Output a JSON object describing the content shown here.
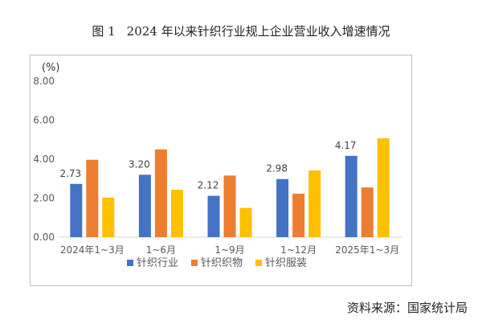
{
  "figure": {
    "number": "图 1",
    "title": "2024 年以来针织行业规上企业营业收入增速情况"
  },
  "source": "资料来源：国家统计局",
  "chart_data": {
    "type": "bar",
    "unit_label": "(%)",
    "categories": [
      "2024年1~3月",
      "1~6月",
      "1~9月",
      "1~12月",
      "2025年1~3月"
    ],
    "series": [
      {
        "name": "针织行业",
        "color": "#4472C4",
        "values": [
          2.73,
          3.2,
          2.12,
          2.98,
          4.17
        ]
      },
      {
        "name": "针织织物",
        "color": "#ED7D31",
        "values": [
          3.97,
          4.5,
          3.16,
          2.23,
          2.55
        ]
      },
      {
        "name": "针织服装",
        "color": "#FFC000",
        "values": [
          2.03,
          2.43,
          1.5,
          3.42,
          5.07
        ]
      }
    ],
    "data_labels": [
      {
        "series": 0,
        "texts": [
          "2.73",
          "3.20",
          "2.12",
          "2.98",
          "4.17"
        ]
      }
    ],
    "ylim": [
      0,
      8
    ],
    "yticks": [
      "0.00",
      "2.00",
      "4.00",
      "6.00",
      "8.00"
    ],
    "legend_position": "bottom",
    "grid": false
  }
}
